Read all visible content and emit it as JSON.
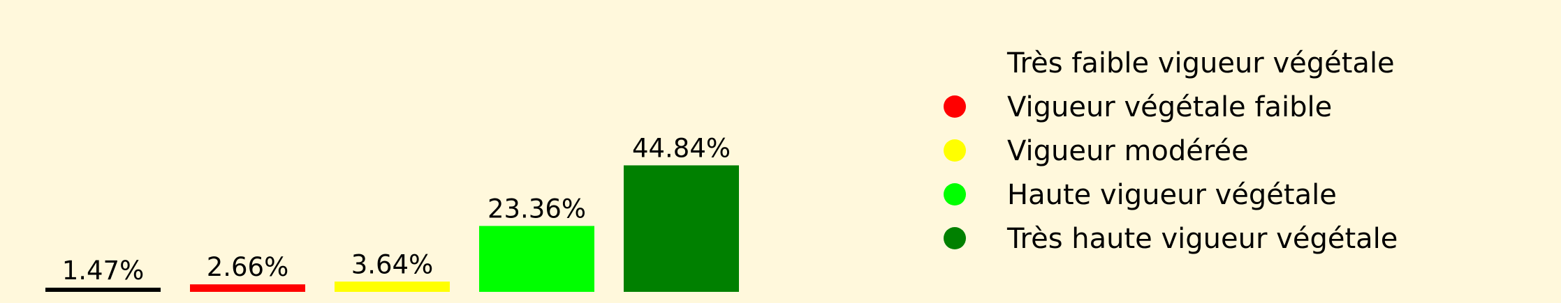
{
  "chart_data": {
    "type": "bar",
    "title": "",
    "xlabel": "",
    "ylabel": "",
    "ylim": [
      0,
      50
    ],
    "grid": false,
    "legend_position": "right",
    "categories": [
      "Très faible vigueur végétale",
      "Vigueur végétale faible",
      "Vigueur modérée",
      "Haute vigueur végétale",
      "Très haute vigueur végétale"
    ],
    "values": [
      1.47,
      2.66,
      3.64,
      23.36,
      44.84
    ],
    "value_labels": [
      "1.47%",
      "2.66%",
      "3.64%",
      "23.36%",
      "44.84%"
    ],
    "colors": [
      "#000000",
      "#ff0000",
      "#ffff00",
      "#00ff00",
      "#008000"
    ],
    "legend": [
      {
        "label": "Très faible vigueur végétale",
        "color": "#000000"
      },
      {
        "label": "Vigueur végétale faible",
        "color": "#ff0000"
      },
      {
        "label": "Vigueur modérée",
        "color": "#ffff00"
      },
      {
        "label": "Haute vigueur végétale",
        "color": "#00ff00"
      },
      {
        "label": "Très haute vigueur végétale",
        "color": "#008000"
      }
    ]
  }
}
